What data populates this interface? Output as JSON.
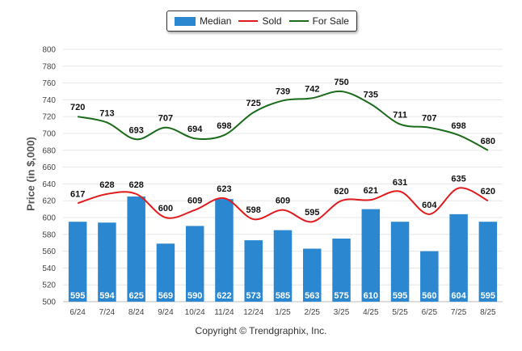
{
  "chart_data": {
    "type": "bar",
    "categories": [
      "6/24",
      "7/24",
      "8/24",
      "9/24",
      "10/24",
      "11/24",
      "12/24",
      "1/25",
      "2/25",
      "3/25",
      "4/25",
      "5/25",
      "6/25",
      "7/25",
      "8/25"
    ],
    "series": [
      {
        "name": "Median",
        "kind": "bar",
        "color": "#2a87d0",
        "values": [
          595,
          594,
          625,
          569,
          590,
          622,
          573,
          585,
          563,
          575,
          610,
          595,
          560,
          604,
          595
        ]
      },
      {
        "name": "Sold",
        "kind": "line",
        "color": "#e31a1c",
        "values": [
          617,
          628,
          628,
          600,
          609,
          623,
          598,
          609,
          595,
          620,
          621,
          631,
          604,
          635,
          620
        ]
      },
      {
        "name": "For Sale",
        "kind": "line",
        "color": "#1a6b1a",
        "values": [
          720,
          713,
          693,
          707,
          694,
          698,
          725,
          739,
          742,
          750,
          735,
          711,
          707,
          698,
          680
        ]
      }
    ],
    "ylabel": "Price (in $,000)",
    "ylim": [
      500,
      800
    ],
    "yticks": [
      500,
      520,
      540,
      560,
      580,
      600,
      620,
      640,
      660,
      680,
      700,
      720,
      740,
      760,
      780,
      800
    ],
    "grid": true,
    "legend_position": "top"
  },
  "copyright": "Copyright © Trendgraphix, Inc."
}
